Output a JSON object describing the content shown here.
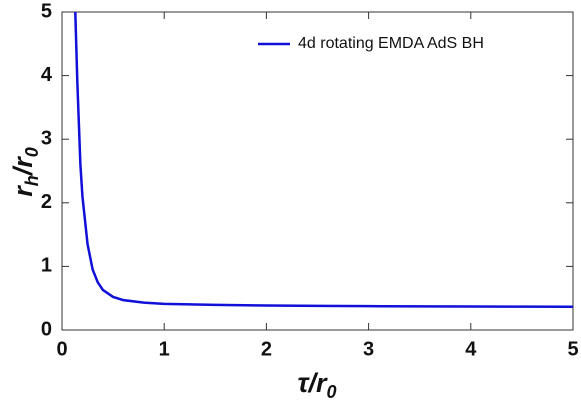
{
  "chart_data": {
    "type": "line",
    "xlabel": [
      "τ/r",
      "0"
    ],
    "ylabel": [
      "r",
      "h",
      "/r",
      "0"
    ],
    "x": [
      0.13,
      0.15,
      0.18,
      0.2,
      0.25,
      0.3,
      0.35,
      0.4,
      0.5,
      0.6,
      0.8,
      1,
      1.5,
      2,
      2.5,
      3,
      3.5,
      4,
      4.5,
      5
    ],
    "series": [
      {
        "name": "4d rotating EMDA AdS BH",
        "color": "#1010d8",
        "values": [
          5,
          3.9,
          2.6,
          2.1,
          1.35,
          0.95,
          0.75,
          0.63,
          0.52,
          0.47,
          0.43,
          0.41,
          0.395,
          0.385,
          0.38,
          0.375,
          0.372,
          0.37,
          0.367,
          0.365
        ]
      }
    ],
    "xlim": [
      0,
      5
    ],
    "ylim": [
      0,
      5
    ],
    "xticks": [
      0,
      1,
      2,
      3,
      4,
      5
    ],
    "yticks": [
      0,
      1,
      2,
      3,
      4,
      5
    ],
    "legend": "top-right"
  }
}
